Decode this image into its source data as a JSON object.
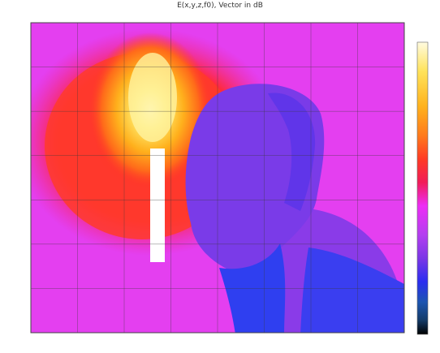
{
  "chart_data": {
    "type": "heatmap",
    "title": "E(x,y,z,f0), Vector in dB",
    "subtitle": "",
    "xlabel": "",
    "ylabel": "",
    "ylim": [
      0.1,
      0.9
    ],
    "x_ticks": [
      "",
      "",
      "",
      "",
      "",
      "",
      ""
    ],
    "y_ticks": [
      "",
      "",
      "",
      "",
      "",
      "",
      ""
    ],
    "colorbar": {
      "min": -60,
      "max": 0,
      "ticks": [
        "",
        "",
        "",
        "",
        "",
        "",
        "",
        "",
        "",
        "",
        "",
        "",
        "",
        "",
        "",
        "",
        "",
        ""
      ],
      "colors": [
        "#fffbe0",
        "#ffe35a",
        "#ffb21d",
        "#ff7a1c",
        "#ff3b24",
        "#f11c58",
        "#ed2df5",
        "#b33ef0",
        "#7a37e6",
        "#2a2df0",
        "#1c55b0",
        "#143c6a",
        "#000000"
      ]
    },
    "regions_note": "",
    "grid": true,
    "colors": {
      "background_field": "#e43ff0",
      "hotspot_core": "#fff7b5",
      "hotspot_mid": "#ffd33f",
      "hotspot_outer": "#ff8a1c",
      "halo": "#ff3b2a",
      "head": "#7a3be8",
      "body_cool": "#2f3ff0",
      "antenna": "#ffffff"
    }
  }
}
